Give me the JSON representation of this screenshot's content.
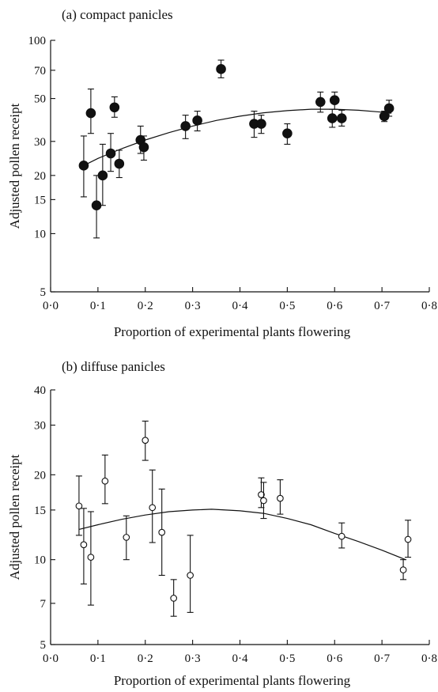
{
  "chart_data": [
    {
      "type": "scatter",
      "title": "(a) compact panicles",
      "xlabel": "Proportion of experimental plants flowering",
      "ylabel": "Adjusted pollen receipt",
      "xlim": [
        0,
        0.8
      ],
      "ylim": [
        5,
        100
      ],
      "yscale": "log",
      "xticks": [
        0,
        0.1,
        0.2,
        0.3,
        0.4,
        0.5,
        0.6,
        0.7,
        0.8
      ],
      "xtick_labels": [
        "0·0",
        "0·1",
        "0·2",
        "0·3",
        "0·4",
        "0·5",
        "0·6",
        "0·7",
        "0·8"
      ],
      "yticks": [
        5,
        10,
        15,
        20,
        30,
        50,
        70,
        100
      ],
      "ytick_labels": [
        "5",
        "10",
        "15",
        "20",
        "30",
        "50",
        "70",
        "100"
      ],
      "marker": "filled",
      "grid": false,
      "points": [
        {
          "x": 0.07,
          "y": 22.5,
          "lo": 15.5,
          "hi": 32
        },
        {
          "x": 0.085,
          "y": 42,
          "lo": 33,
          "hi": 56
        },
        {
          "x": 0.097,
          "y": 14,
          "lo": 9.5,
          "hi": 20
        },
        {
          "x": 0.11,
          "y": 20,
          "lo": 14,
          "hi": 29
        },
        {
          "x": 0.127,
          "y": 26,
          "lo": 21,
          "hi": 33
        },
        {
          "x": 0.135,
          "y": 45,
          "lo": 40,
          "hi": 51
        },
        {
          "x": 0.145,
          "y": 23,
          "lo": 19.5,
          "hi": 27
        },
        {
          "x": 0.19,
          "y": 30.5,
          "lo": 26,
          "hi": 36
        },
        {
          "x": 0.197,
          "y": 28,
          "lo": 24,
          "hi": 32
        },
        {
          "x": 0.285,
          "y": 36,
          "lo": 31,
          "hi": 41
        },
        {
          "x": 0.31,
          "y": 38.5,
          "lo": 34,
          "hi": 43
        },
        {
          "x": 0.36,
          "y": 71,
          "lo": 64,
          "hi": 79
        },
        {
          "x": 0.43,
          "y": 37,
          "lo": 31.5,
          "hi": 43
        },
        {
          "x": 0.445,
          "y": 37,
          "lo": 33,
          "hi": 41
        },
        {
          "x": 0.5,
          "y": 33,
          "lo": 29,
          "hi": 37
        },
        {
          "x": 0.57,
          "y": 48,
          "lo": 42.5,
          "hi": 54
        },
        {
          "x": 0.595,
          "y": 39.5,
          "lo": 35.5,
          "hi": 44
        },
        {
          "x": 0.6,
          "y": 49,
          "lo": 44,
          "hi": 54
        },
        {
          "x": 0.615,
          "y": 39.5,
          "lo": 36,
          "hi": 43.5
        },
        {
          "x": 0.705,
          "y": 40.5,
          "lo": 38,
          "hi": 43
        },
        {
          "x": 0.715,
          "y": 44.5,
          "lo": 40.5,
          "hi": 49
        }
      ],
      "fit": [
        {
          "x": 0.07,
          "y": 22.5
        },
        {
          "x": 0.1,
          "y": 24.5
        },
        {
          "x": 0.15,
          "y": 27.5
        },
        {
          "x": 0.2,
          "y": 30.5
        },
        {
          "x": 0.25,
          "y": 33.3
        },
        {
          "x": 0.3,
          "y": 36
        },
        {
          "x": 0.35,
          "y": 38.5
        },
        {
          "x": 0.4,
          "y": 40.5
        },
        {
          "x": 0.45,
          "y": 42.2
        },
        {
          "x": 0.5,
          "y": 43.3
        },
        {
          "x": 0.55,
          "y": 44
        },
        {
          "x": 0.6,
          "y": 44
        },
        {
          "x": 0.65,
          "y": 43.5
        },
        {
          "x": 0.7,
          "y": 42.5
        },
        {
          "x": 0.72,
          "y": 42
        }
      ]
    },
    {
      "type": "scatter",
      "title": "(b) diffuse panicles",
      "xlabel": "Proportion of experimental plants flowering",
      "ylabel": "Adjusted pollen receipt",
      "xlim": [
        0,
        0.8
      ],
      "ylim": [
        5,
        40
      ],
      "yscale": "log",
      "xticks": [
        0,
        0.1,
        0.2,
        0.3,
        0.4,
        0.5,
        0.6,
        0.7,
        0.8
      ],
      "xtick_labels": [
        "0·0",
        "0·1",
        "0·2",
        "0·3",
        "0·4",
        "0·5",
        "0·6",
        "0·7",
        "0·8"
      ],
      "yticks": [
        5,
        7,
        10,
        15,
        20,
        30,
        40
      ],
      "ytick_labels": [
        "5",
        "7",
        "10",
        "15",
        "20",
        "30",
        "40"
      ],
      "marker": "open",
      "grid": false,
      "points": [
        {
          "x": 0.06,
          "y": 15.5,
          "lo": 12.2,
          "hi": 19.8
        },
        {
          "x": 0.07,
          "y": 11.3,
          "lo": 8.2,
          "hi": 15.2
        },
        {
          "x": 0.085,
          "y": 10.2,
          "lo": 6.9,
          "hi": 14.8
        },
        {
          "x": 0.115,
          "y": 19,
          "lo": 15.8,
          "hi": 23.5
        },
        {
          "x": 0.16,
          "y": 12,
          "lo": 10,
          "hi": 14.3
        },
        {
          "x": 0.2,
          "y": 26.5,
          "lo": 22.5,
          "hi": 31
        },
        {
          "x": 0.215,
          "y": 15.3,
          "lo": 11.5,
          "hi": 20.8
        },
        {
          "x": 0.235,
          "y": 12.5,
          "lo": 8.8,
          "hi": 17.8
        },
        {
          "x": 0.26,
          "y": 7.3,
          "lo": 6.3,
          "hi": 8.5
        },
        {
          "x": 0.295,
          "y": 8.8,
          "lo": 6.5,
          "hi": 12.2
        },
        {
          "x": 0.445,
          "y": 17,
          "lo": 15.3,
          "hi": 19.5
        },
        {
          "x": 0.45,
          "y": 16.2,
          "lo": 14,
          "hi": 18.8
        },
        {
          "x": 0.485,
          "y": 16.5,
          "lo": 14.5,
          "hi": 19.2
        },
        {
          "x": 0.615,
          "y": 12.1,
          "lo": 11,
          "hi": 13.5
        },
        {
          "x": 0.745,
          "y": 9.2,
          "lo": 8.5,
          "hi": 10
        },
        {
          "x": 0.755,
          "y": 11.8,
          "lo": 10.2,
          "hi": 13.8
        }
      ],
      "fit": [
        {
          "x": 0.06,
          "y": 12.8
        },
        {
          "x": 0.1,
          "y": 13.3
        },
        {
          "x": 0.15,
          "y": 13.9
        },
        {
          "x": 0.2,
          "y": 14.4
        },
        {
          "x": 0.25,
          "y": 14.8
        },
        {
          "x": 0.3,
          "y": 15
        },
        {
          "x": 0.34,
          "y": 15.1
        },
        {
          "x": 0.4,
          "y": 14.9
        },
        {
          "x": 0.45,
          "y": 14.6
        },
        {
          "x": 0.5,
          "y": 14
        },
        {
          "x": 0.55,
          "y": 13.3
        },
        {
          "x": 0.6,
          "y": 12.4
        },
        {
          "x": 0.65,
          "y": 11.6
        },
        {
          "x": 0.7,
          "y": 10.8
        },
        {
          "x": 0.75,
          "y": 10
        }
      ]
    }
  ]
}
